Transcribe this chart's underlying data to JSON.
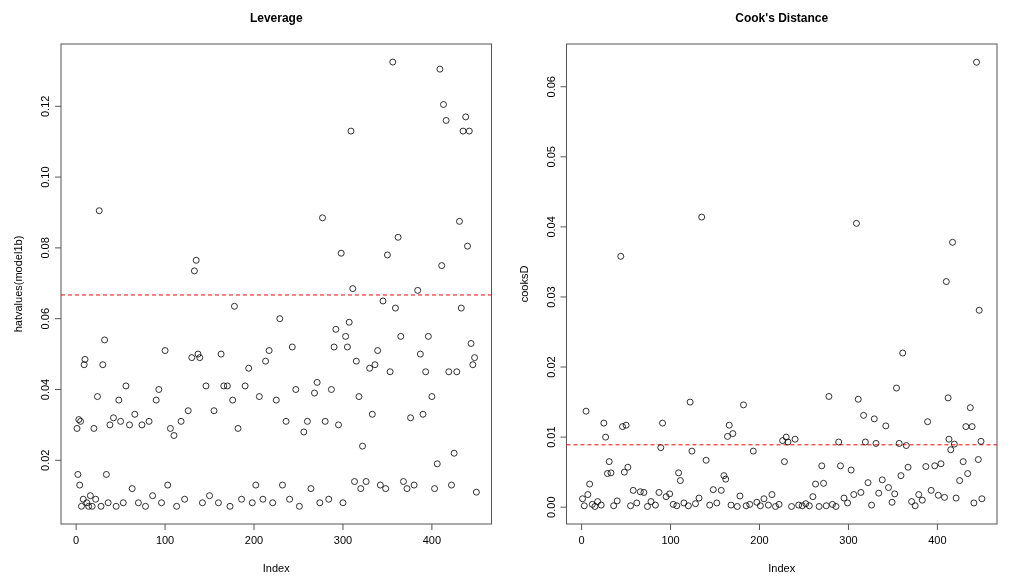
{
  "chart_data": [
    {
      "type": "scatter",
      "title": "Leverage",
      "xlabel": "Index",
      "ylabel": "hatvalues(model1b)",
      "marker": "circle",
      "xlim": [
        -17,
        467
      ],
      "xticks": [
        0,
        100,
        200,
        300,
        400
      ],
      "ylim": [
        0.002,
        0.1376
      ],
      "yticks": [
        0.02,
        0.04,
        0.06,
        0.08,
        {
          "value": 0.1,
          "label": "0.10"
        },
        0.12
      ],
      "ref_lines": [
        {
          "axis": "y",
          "value": 0.0667,
          "color": "#ff0000",
          "line_style": "dashed"
        }
      ],
      "series": [
        {
          "color": "#000000",
          "x": [
            1,
            2,
            3,
            4,
            5,
            6,
            8,
            9,
            10,
            12,
            14,
            16,
            18,
            20,
            22,
            24,
            26,
            28,
            30,
            32,
            34,
            36,
            38,
            42,
            45,
            48,
            50,
            53,
            56,
            60,
            63,
            66,
            70,
            74,
            78,
            82,
            86,
            90,
            93,
            96,
            100,
            103,
            106,
            110,
            113,
            118,
            122,
            126,
            130,
            133,
            135,
            137,
            139,
            142,
            146,
            150,
            155,
            160,
            163,
            166,
            170,
            173,
            176,
            178,
            182,
            186,
            190,
            194,
            198,
            202,
            206,
            210,
            213,
            217,
            221,
            225,
            229,
            232,
            236,
            240,
            243,
            247,
            251,
            256,
            260,
            264,
            268,
            271,
            274,
            277,
            280,
            284,
            287,
            290,
            292,
            295,
            298,
            300,
            303,
            305,
            307,
            309,
            311,
            313,
            315,
            318,
            320,
            322,
            326,
            330,
            333,
            336,
            339,
            342,
            345,
            348,
            350,
            353,
            356,
            359,
            362,
            365,
            368,
            372,
            376,
            380,
            384,
            387,
            390,
            393,
            396,
            400,
            403,
            406,
            409,
            411,
            413,
            416,
            419,
            422,
            425,
            428,
            431,
            433,
            435,
            438,
            440,
            442,
            444,
            446,
            448,
            450
          ],
          "values": [
            0.029,
            0.016,
            0.0315,
            0.013,
            0.031,
            0.007,
            0.009,
            0.047,
            0.0485,
            0.008,
            0.007,
            0.01,
            0.007,
            0.029,
            0.009,
            0.038,
            0.0905,
            0.007,
            0.047,
            0.054,
            0.016,
            0.008,
            0.03,
            0.032,
            0.007,
            0.037,
            0.031,
            0.008,
            0.041,
            0.03,
            0.012,
            0.033,
            0.008,
            0.03,
            0.007,
            0.031,
            0.01,
            0.037,
            0.04,
            0.008,
            0.051,
            0.013,
            0.029,
            0.027,
            0.007,
            0.031,
            0.009,
            0.034,
            0.049,
            0.0735,
            0.0765,
            0.05,
            0.049,
            0.008,
            0.041,
            0.01,
            0.034,
            0.008,
            0.05,
            0.041,
            0.041,
            0.007,
            0.037,
            0.0635,
            0.029,
            0.009,
            0.041,
            0.046,
            0.008,
            0.013,
            0.038,
            0.009,
            0.048,
            0.051,
            0.008,
            0.037,
            0.06,
            0.013,
            0.031,
            0.009,
            0.052,
            0.04,
            0.007,
            0.028,
            0.031,
            0.012,
            0.039,
            0.042,
            0.008,
            0.0885,
            0.031,
            0.009,
            0.04,
            0.052,
            0.057,
            0.03,
            0.0785,
            0.008,
            0.055,
            0.052,
            0.059,
            0.113,
            0.0685,
            0.014,
            0.048,
            0.038,
            0.012,
            0.024,
            0.014,
            0.046,
            0.033,
            0.047,
            0.051,
            0.013,
            0.065,
            0.012,
            0.078,
            0.045,
            0.1325,
            0.063,
            0.083,
            0.055,
            0.014,
            0.012,
            0.032,
            0.013,
            0.068,
            0.05,
            0.033,
            0.045,
            0.055,
            0.038,
            0.012,
            0.019,
            0.1305,
            0.075,
            0.1205,
            0.116,
            0.045,
            0.013,
            0.022,
            0.045,
            0.0875,
            0.063,
            0.113,
            0.117,
            0.0805,
            0.113,
            0.053,
            0.047,
            0.049,
            0.011
          ]
        }
      ]
    },
    {
      "type": "scatter",
      "title": "Cook's Distance",
      "xlabel": "Index",
      "ylabel": "cooksD",
      "marker": "circle",
      "xlim": [
        -17,
        467
      ],
      "xticks": [
        0,
        100,
        200,
        300,
        400
      ],
      "ylim": [
        -0.0024,
        0.0661
      ],
      "yticks": [
        {
          "value": 0,
          "label": "0.00"
        },
        {
          "value": 0.01,
          "label": "0.01"
        },
        {
          "value": 0.02,
          "label": "0.02"
        },
        {
          "value": 0.03,
          "label": "0.03"
        },
        {
          "value": 0.04,
          "label": "0.04"
        },
        {
          "value": 0.05,
          "label": "0.05"
        },
        {
          "value": 0.06,
          "label": "0.06"
        }
      ],
      "ref_lines": [
        {
          "axis": "y",
          "value": 0.0089,
          "color": "#ff0000",
          "line_style": "dashed"
        }
      ],
      "series": [
        {
          "color": "#000000",
          "x": [
            1,
            3,
            5,
            7,
            9,
            12,
            15,
            18,
            22,
            25,
            27,
            29,
            31,
            33,
            36,
            40,
            44,
            46,
            48,
            50,
            52,
            55,
            58,
            62,
            66,
            70,
            74,
            78,
            83,
            87,
            89,
            91,
            95,
            99,
            103,
            107,
            109,
            111,
            115,
            120,
            122,
            124,
            128,
            132,
            135,
            140,
            144,
            148,
            152,
            157,
            160,
            162,
            164,
            166,
            168,
            170,
            175,
            178,
            182,
            185,
            189,
            193,
            197,
            201,
            205,
            210,
            214,
            218,
            222,
            226,
            228,
            230,
            232,
            236,
            240,
            244,
            248,
            252,
            256,
            260,
            263,
            267,
            270,
            272,
            275,
            278,
            282,
            286,
            289,
            291,
            295,
            299,
            303,
            306,
            309,
            311,
            314,
            317,
            319,
            322,
            326,
            329,
            331,
            334,
            338,
            342,
            345,
            349,
            352,
            354,
            357,
            359,
            361,
            365,
            367,
            371,
            375,
            379,
            383,
            387,
            389,
            393,
            397,
            401,
            404,
            408,
            410,
            412,
            413,
            415,
            417,
            419,
            421,
            425,
            429,
            432,
            434,
            437,
            439,
            441,
            444,
            446,
            447,
            449,
            450
          ],
          "values": [
            0.0012,
            0.0002,
            0.0137,
            0.0018,
            0.0033,
            0.0004,
            0.0001,
            0.0008,
            0.0003,
            0.012,
            0.01,
            0.0048,
            0.0065,
            0.0049,
            0.0002,
            0.0009,
            0.0358,
            0.0115,
            0.005,
            0.0117,
            0.0057,
            0.0002,
            0.0024,
            0.0006,
            0.0022,
            0.0021,
            0.0001,
            0.0008,
            0.0003,
            0.0021,
            0.0085,
            0.012,
            0.0015,
            0.0019,
            0.0004,
            0.0002,
            0.0049,
            0.0038,
            0.0006,
            0.0002,
            0.015,
            0.008,
            0.0005,
            0.0013,
            0.0414,
            0.0067,
            0.0003,
            0.0025,
            0.0006,
            0.0024,
            0.0045,
            0.004,
            0.0101,
            0.0117,
            0.0003,
            0.0105,
            0.0001,
            0.0016,
            0.0146,
            0.0002,
            0.0004,
            0.008,
            0.0007,
            0.0002,
            0.0012,
            0.0003,
            0.0018,
            0.0001,
            0.0004,
            0.0095,
            0.0065,
            0.01,
            0.0093,
            0.0001,
            0.0097,
            0.0003,
            0.0002,
            0.0005,
            0.0002,
            0.0015,
            0.0033,
            0.0001,
            0.0059,
            0.0034,
            0.0002,
            0.0158,
            0.0004,
            0.0001,
            0.0093,
            0.0059,
            0.0013,
            0.0006,
            0.0053,
            0.0018,
            0.0405,
            0.0154,
            0.0021,
            0.0131,
            0.0093,
            0.0035,
            0.0003,
            0.0126,
            0.0091,
            0.002,
            0.0039,
            0.0116,
            0.0028,
            0.0007,
            0.0019,
            0.017,
            0.0091,
            0.0045,
            0.022,
            0.0088,
            0.0057,
            0.0008,
            0.0002,
            0.0018,
            0.001,
            0.0058,
            0.0122,
            0.0024,
            0.0059,
            0.0017,
            0.0062,
            0.0014,
            0.0322,
            0.0156,
            0.0097,
            0.0082,
            0.0378,
            0.009,
            0.0013,
            0.0038,
            0.0065,
            0.0115,
            0.0048,
            0.0142,
            0.0115,
            0.0006,
            0.0635,
            0.0068,
            0.0281,
            0.0094,
            0.0012
          ]
        }
      ]
    }
  ]
}
